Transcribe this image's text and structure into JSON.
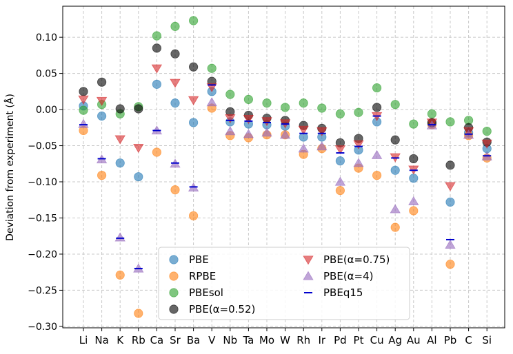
{
  "chart_data": {
    "type": "scatter",
    "title": "",
    "xlabel": "",
    "ylabel": "Deviation from experiment (Å)",
    "ylim": [
      -0.302,
      0.143
    ],
    "yticks": [
      0.1,
      0.05,
      0.0,
      -0.05,
      -0.1,
      -0.15,
      -0.2,
      -0.25,
      -0.3
    ],
    "ytick_labels": [
      "0.10",
      "0.05",
      "0.00",
      "−0.05",
      "−0.10",
      "−0.15",
      "−0.20",
      "−0.25",
      "−0.30"
    ],
    "grid": true,
    "legend_position": "lower center",
    "categories": [
      "Li",
      "Na",
      "K",
      "Rb",
      "Ca",
      "Sr",
      "Ba",
      "V",
      "Nb",
      "Ta",
      "Mo",
      "W",
      "Rh",
      "Ir",
      "Pd",
      "Pt",
      "Cu",
      "Ag",
      "Au",
      "Al",
      "Pb",
      "C",
      "Si"
    ],
    "series": [
      {
        "name": "PBE",
        "marker": "circle",
        "color": "#1f77b4",
        "values": [
          0.005,
          -0.009,
          -0.074,
          -0.093,
          0.035,
          0.009,
          -0.018,
          0.025,
          -0.017,
          -0.02,
          -0.021,
          -0.023,
          -0.038,
          -0.038,
          -0.071,
          -0.056,
          -0.017,
          -0.084,
          -0.095,
          -0.019,
          -0.128,
          -0.032,
          -0.054
        ]
      },
      {
        "name": "RPBE",
        "marker": "circle",
        "color": "#ff7f0e",
        "values": [
          -0.029,
          -0.091,
          -0.229,
          -0.282,
          -0.059,
          -0.111,
          -0.147,
          0.002,
          -0.036,
          -0.039,
          -0.035,
          -0.035,
          -0.062,
          -0.054,
          -0.112,
          -0.081,
          -0.091,
          -0.163,
          -0.14,
          -0.021,
          -0.214,
          -0.036,
          -0.067
        ]
      },
      {
        "name": "PBEsol",
        "marker": "circle",
        "color": "#2ca02c",
        "values": [
          -0.001,
          0.007,
          -0.006,
          0.004,
          0.102,
          0.115,
          0.123,
          0.057,
          0.021,
          0.014,
          0.009,
          0.003,
          0.009,
          0.002,
          -0.006,
          -0.004,
          0.03,
          0.007,
          -0.02,
          -0.006,
          -0.017,
          -0.015,
          -0.03
        ]
      },
      {
        "name": "PBE(α=0.52)",
        "marker": "circle",
        "color": "#000000",
        "values": [
          0.025,
          0.038,
          0.001,
          0.001,
          0.085,
          0.077,
          0.059,
          0.039,
          -0.003,
          -0.008,
          -0.012,
          -0.015,
          -0.022,
          -0.026,
          -0.046,
          -0.04,
          0.003,
          -0.042,
          -0.068,
          -0.018,
          -0.077,
          -0.025,
          -0.045
        ]
      },
      {
        "name": "PBE(α=0.75)",
        "marker": "triangle-down",
        "color": "#d62728",
        "values": [
          0.014,
          0.012,
          -0.041,
          -0.053,
          0.057,
          0.037,
          0.013,
          0.031,
          -0.012,
          -0.013,
          -0.016,
          -0.019,
          -0.028,
          -0.03,
          -0.055,
          -0.048,
          -0.009,
          -0.066,
          -0.083,
          -0.018,
          -0.106,
          -0.03,
          -0.047
        ]
      },
      {
        "name": "PBE(α=4)",
        "marker": "triangle-up",
        "color": "#9467bd",
        "values": [
          -0.02,
          -0.069,
          -0.177,
          -0.22,
          -0.029,
          -0.075,
          -0.108,
          0.01,
          -0.03,
          -0.034,
          -0.032,
          -0.035,
          -0.054,
          -0.051,
          -0.1,
          -0.074,
          -0.063,
          -0.138,
          -0.127,
          -0.022,
          -0.187,
          -0.035,
          -0.065
        ]
      },
      {
        "name": "PBEq15",
        "marker": "hline",
        "color": "#0000cd",
        "values": [
          -0.021,
          -0.068,
          -0.178,
          -0.22,
          -0.029,
          -0.074,
          -0.107,
          0.034,
          -0.015,
          -0.016,
          -0.018,
          -0.02,
          -0.033,
          -0.033,
          -0.06,
          -0.051,
          -0.009,
          -0.067,
          -0.084,
          -0.021,
          -0.18,
          -0.034,
          -0.064
        ]
      }
    ]
  }
}
